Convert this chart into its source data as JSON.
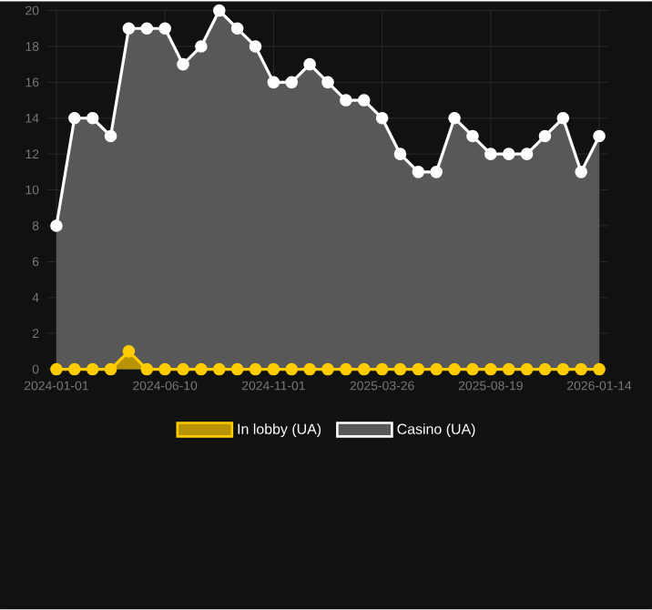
{
  "chart_data": {
    "type": "area",
    "categories": [
      "2024-01-01",
      null,
      null,
      null,
      null,
      null,
      "2024-06-10",
      null,
      null,
      null,
      null,
      null,
      "2024-11-01",
      null,
      null,
      null,
      null,
      null,
      "2025-03-26",
      null,
      null,
      null,
      null,
      null,
      "2025-08-19",
      null,
      null,
      null,
      null,
      null,
      "2026-01-14"
    ],
    "series": [
      {
        "name": "In lobby (UA)",
        "color": "#ffcc00",
        "values": [
          0,
          0,
          0,
          0,
          1,
          0,
          0,
          0,
          0,
          0,
          0,
          0,
          0,
          0,
          0,
          0,
          0,
          0,
          0,
          0,
          0,
          0,
          0,
          0,
          0,
          0,
          0,
          0,
          0,
          0,
          0
        ]
      },
      {
        "name": "Casino (UA)",
        "color": "#ffffff",
        "values": [
          8,
          14,
          14,
          13,
          19,
          19,
          19,
          17,
          18,
          20,
          19,
          18,
          16,
          16,
          17,
          16,
          15,
          15,
          14,
          12,
          11,
          11,
          14,
          13,
          12,
          12,
          12,
          13,
          14,
          11,
          13
        ]
      }
    ],
    "ylim": [
      0,
      20
    ],
    "yticks": [
      0,
      2,
      4,
      6,
      8,
      10,
      12,
      14,
      16,
      18,
      20
    ],
    "grid": true,
    "legend": "bottom",
    "marker": "circle"
  }
}
